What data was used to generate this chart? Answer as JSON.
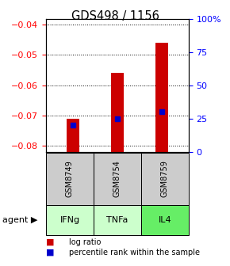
{
  "title": "GDS498 / 1156",
  "samples": [
    "GSM8749",
    "GSM8754",
    "GSM8759"
  ],
  "agents": [
    "IFNg",
    "TNFa",
    "IL4"
  ],
  "log_ratios": [
    -0.071,
    -0.056,
    -0.046
  ],
  "percentile_ranks": [
    0.2,
    0.25,
    0.3
  ],
  "bar_color": "#cc0000",
  "dot_color": "#0000cc",
  "ylim_left": [
    -0.082,
    -0.038
  ],
  "ylim_right": [
    0,
    1.0
  ],
  "yticks_left": [
    -0.08,
    -0.07,
    -0.06,
    -0.05,
    -0.04
  ],
  "yticks_right": [
    0,
    0.25,
    0.5,
    0.75,
    1.0
  ],
  "ytick_labels_right": [
    "0",
    "25",
    "50",
    "75",
    "100%"
  ],
  "agent_colors": [
    "#ccffcc",
    "#ccffcc",
    "#66ee66"
  ],
  "sample_box_color": "#cccccc",
  "bar_bottom": -0.082,
  "bar_width": 0.28
}
